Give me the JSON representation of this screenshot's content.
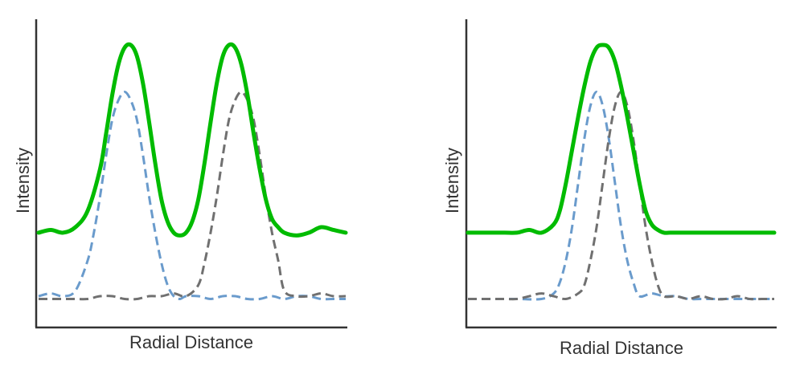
{
  "chart_data": [
    {
      "type": "line",
      "title": "",
      "xlabel": "Radial Distance",
      "ylabel": "Intensity",
      "xlim": [
        0,
        100
      ],
      "ylim": [
        0,
        1
      ],
      "grid": false,
      "legend": "none",
      "series": [
        {
          "color": "#00bb00",
          "style": "solid",
          "x": [
            0,
            4,
            8,
            12,
            16,
            20,
            22,
            24,
            26,
            28,
            30,
            32,
            34,
            36,
            38,
            40,
            42,
            44,
            46,
            48,
            50,
            52,
            54,
            56,
            58,
            60,
            62,
            64,
            66,
            68,
            70,
            72,
            74,
            76,
            78,
            80,
            84,
            88,
            92,
            96,
            100
          ],
          "values": [
            0.32,
            0.33,
            0.32,
            0.34,
            0.4,
            0.55,
            0.68,
            0.82,
            0.93,
            0.99,
            1.0,
            0.96,
            0.86,
            0.72,
            0.57,
            0.44,
            0.36,
            0.32,
            0.31,
            0.32,
            0.36,
            0.44,
            0.57,
            0.72,
            0.86,
            0.96,
            1.0,
            0.99,
            0.93,
            0.82,
            0.68,
            0.55,
            0.44,
            0.37,
            0.34,
            0.32,
            0.31,
            0.32,
            0.34,
            0.33,
            0.32
          ]
        },
        {
          "color": "#6a9bcc",
          "style": "dashed",
          "x": [
            0,
            4,
            8,
            12,
            16,
            18,
            20,
            22,
            24,
            26,
            28,
            30,
            32,
            34,
            36,
            38,
            40,
            42,
            44,
            46,
            48,
            52,
            56,
            60,
            64,
            68,
            72,
            76,
            80,
            84,
            88,
            92,
            96,
            100
          ],
          "values": [
            0.09,
            0.1,
            0.09,
            0.11,
            0.22,
            0.32,
            0.45,
            0.6,
            0.73,
            0.8,
            0.83,
            0.8,
            0.73,
            0.6,
            0.45,
            0.32,
            0.21,
            0.13,
            0.09,
            0.08,
            0.09,
            0.09,
            0.08,
            0.09,
            0.09,
            0.08,
            0.08,
            0.09,
            0.08,
            0.09,
            0.09,
            0.08,
            0.08,
            0.08
          ]
        },
        {
          "color": "#707070",
          "style": "dashed",
          "x": [
            0,
            4,
            8,
            12,
            16,
            20,
            24,
            28,
            32,
            36,
            40,
            44,
            48,
            52,
            54,
            56,
            58,
            60,
            62,
            64,
            66,
            68,
            70,
            72,
            74,
            76,
            78,
            80,
            84,
            88,
            92,
            96,
            100
          ],
          "values": [
            0.08,
            0.08,
            0.08,
            0.08,
            0.08,
            0.09,
            0.09,
            0.08,
            0.08,
            0.09,
            0.09,
            0.1,
            0.09,
            0.13,
            0.21,
            0.32,
            0.45,
            0.6,
            0.73,
            0.8,
            0.83,
            0.8,
            0.73,
            0.6,
            0.45,
            0.32,
            0.22,
            0.11,
            0.09,
            0.09,
            0.1,
            0.09,
            0.09
          ]
        }
      ]
    },
    {
      "type": "line",
      "title": "",
      "xlabel": "Radial Distance",
      "ylabel": "Intensity",
      "xlim": [
        0,
        100
      ],
      "ylim": [
        0,
        1
      ],
      "grid": false,
      "legend": "none",
      "series": [
        {
          "color": "#00bb00",
          "style": "solid",
          "x": [
            0,
            4,
            8,
            12,
            16,
            20,
            24,
            28,
            30,
            32,
            34,
            36,
            38,
            40,
            42,
            44,
            46,
            48,
            50,
            52,
            54,
            56,
            58,
            60,
            62,
            64,
            66,
            68,
            72,
            76,
            80,
            84,
            88,
            92,
            96,
            100
          ],
          "values": [
            0.32,
            0.32,
            0.32,
            0.32,
            0.32,
            0.33,
            0.32,
            0.35,
            0.4,
            0.5,
            0.62,
            0.74,
            0.85,
            0.94,
            0.99,
            1.0,
            0.99,
            0.94,
            0.85,
            0.74,
            0.62,
            0.5,
            0.4,
            0.35,
            0.33,
            0.32,
            0.32,
            0.32,
            0.32,
            0.32,
            0.32,
            0.32,
            0.32,
            0.32,
            0.32,
            0.32
          ]
        },
        {
          "color": "#6a9bcc",
          "style": "dashed",
          "x": [
            0,
            8,
            16,
            24,
            28,
            30,
            32,
            34,
            36,
            38,
            40,
            42,
            44,
            46,
            48,
            50,
            52,
            54,
            56,
            60,
            64,
            68,
            72,
            76,
            80,
            84,
            88,
            92,
            96,
            100
          ],
          "values": [
            0.08,
            0.08,
            0.08,
            0.08,
            0.1,
            0.14,
            0.22,
            0.34,
            0.5,
            0.66,
            0.78,
            0.83,
            0.78,
            0.66,
            0.5,
            0.34,
            0.22,
            0.14,
            0.09,
            0.1,
            0.09,
            0.09,
            0.08,
            0.08,
            0.08,
            0.08,
            0.08,
            0.08,
            0.08,
            0.08
          ]
        },
        {
          "color": "#707070",
          "style": "dashed",
          "x": [
            0,
            4,
            8,
            12,
            16,
            20,
            24,
            28,
            32,
            36,
            38,
            40,
            42,
            44,
            46,
            48,
            50,
            52,
            54,
            56,
            58,
            60,
            62,
            64,
            68,
            72,
            76,
            80,
            84,
            88,
            92,
            96,
            100
          ],
          "values": [
            0.08,
            0.08,
            0.08,
            0.08,
            0.08,
            0.09,
            0.1,
            0.09,
            0.08,
            0.1,
            0.13,
            0.22,
            0.34,
            0.5,
            0.66,
            0.78,
            0.83,
            0.78,
            0.66,
            0.5,
            0.34,
            0.22,
            0.13,
            0.09,
            0.09,
            0.08,
            0.09,
            0.08,
            0.08,
            0.09,
            0.08,
            0.08,
            0.08
          ]
        }
      ]
    }
  ]
}
